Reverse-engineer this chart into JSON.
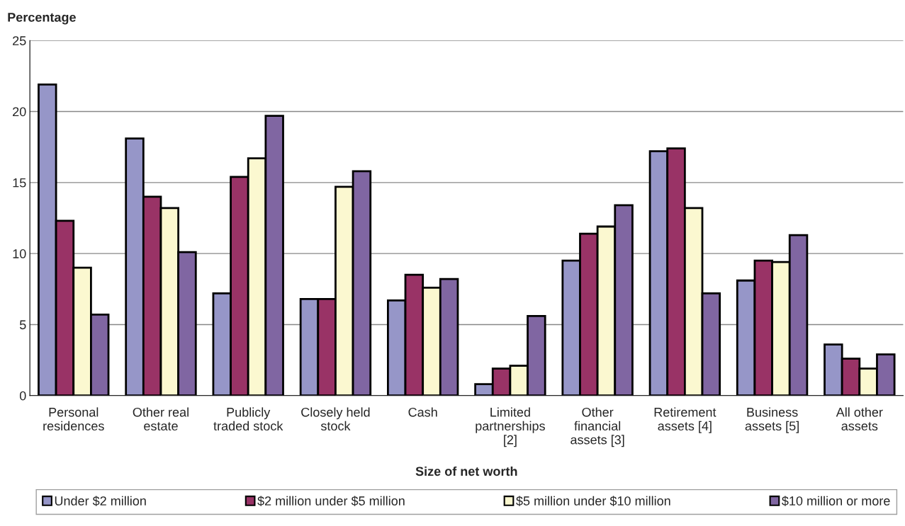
{
  "chart_data": {
    "type": "bar",
    "ylabel": "Percentage",
    "xlabel": "Size of net worth",
    "categories": [
      "Personal\nresidences",
      "Other real\nestate",
      "Publicly\ntraded stock",
      "Closely held\nstock",
      "Cash",
      "Limited\npartnerships\n[2]",
      "Other\nfinancial\nassets [3]",
      "Retirement\nassets [4]",
      "Business\nassets [5]",
      "All other\nassets"
    ],
    "series": [
      {
        "name": "Under $2 million",
        "color": "#9696c8",
        "values": [
          21.9,
          18.1,
          7.2,
          6.8,
          6.7,
          0.8,
          9.5,
          17.2,
          8.1,
          3.6
        ]
      },
      {
        "name": "$2 million under $5 million",
        "color": "#993366",
        "values": [
          12.3,
          14.0,
          15.4,
          6.8,
          8.5,
          1.9,
          11.4,
          17.4,
          9.5,
          2.6
        ]
      },
      {
        "name": "$5 million under $10 million",
        "color": "#fbf8d0",
        "values": [
          9.0,
          13.2,
          16.7,
          14.7,
          7.6,
          2.1,
          11.9,
          13.2,
          9.4,
          1.9
        ]
      },
      {
        "name": "$10 million or more",
        "color": "#8066a2",
        "values": [
          5.7,
          10.1,
          19.7,
          15.8,
          8.2,
          5.6,
          13.4,
          7.2,
          11.3,
          2.9
        ]
      }
    ],
    "ylim": [
      0,
      25
    ],
    "yticks": [
      0,
      5,
      10,
      15,
      20,
      25
    ],
    "grid": "y",
    "legend": "bottom"
  }
}
